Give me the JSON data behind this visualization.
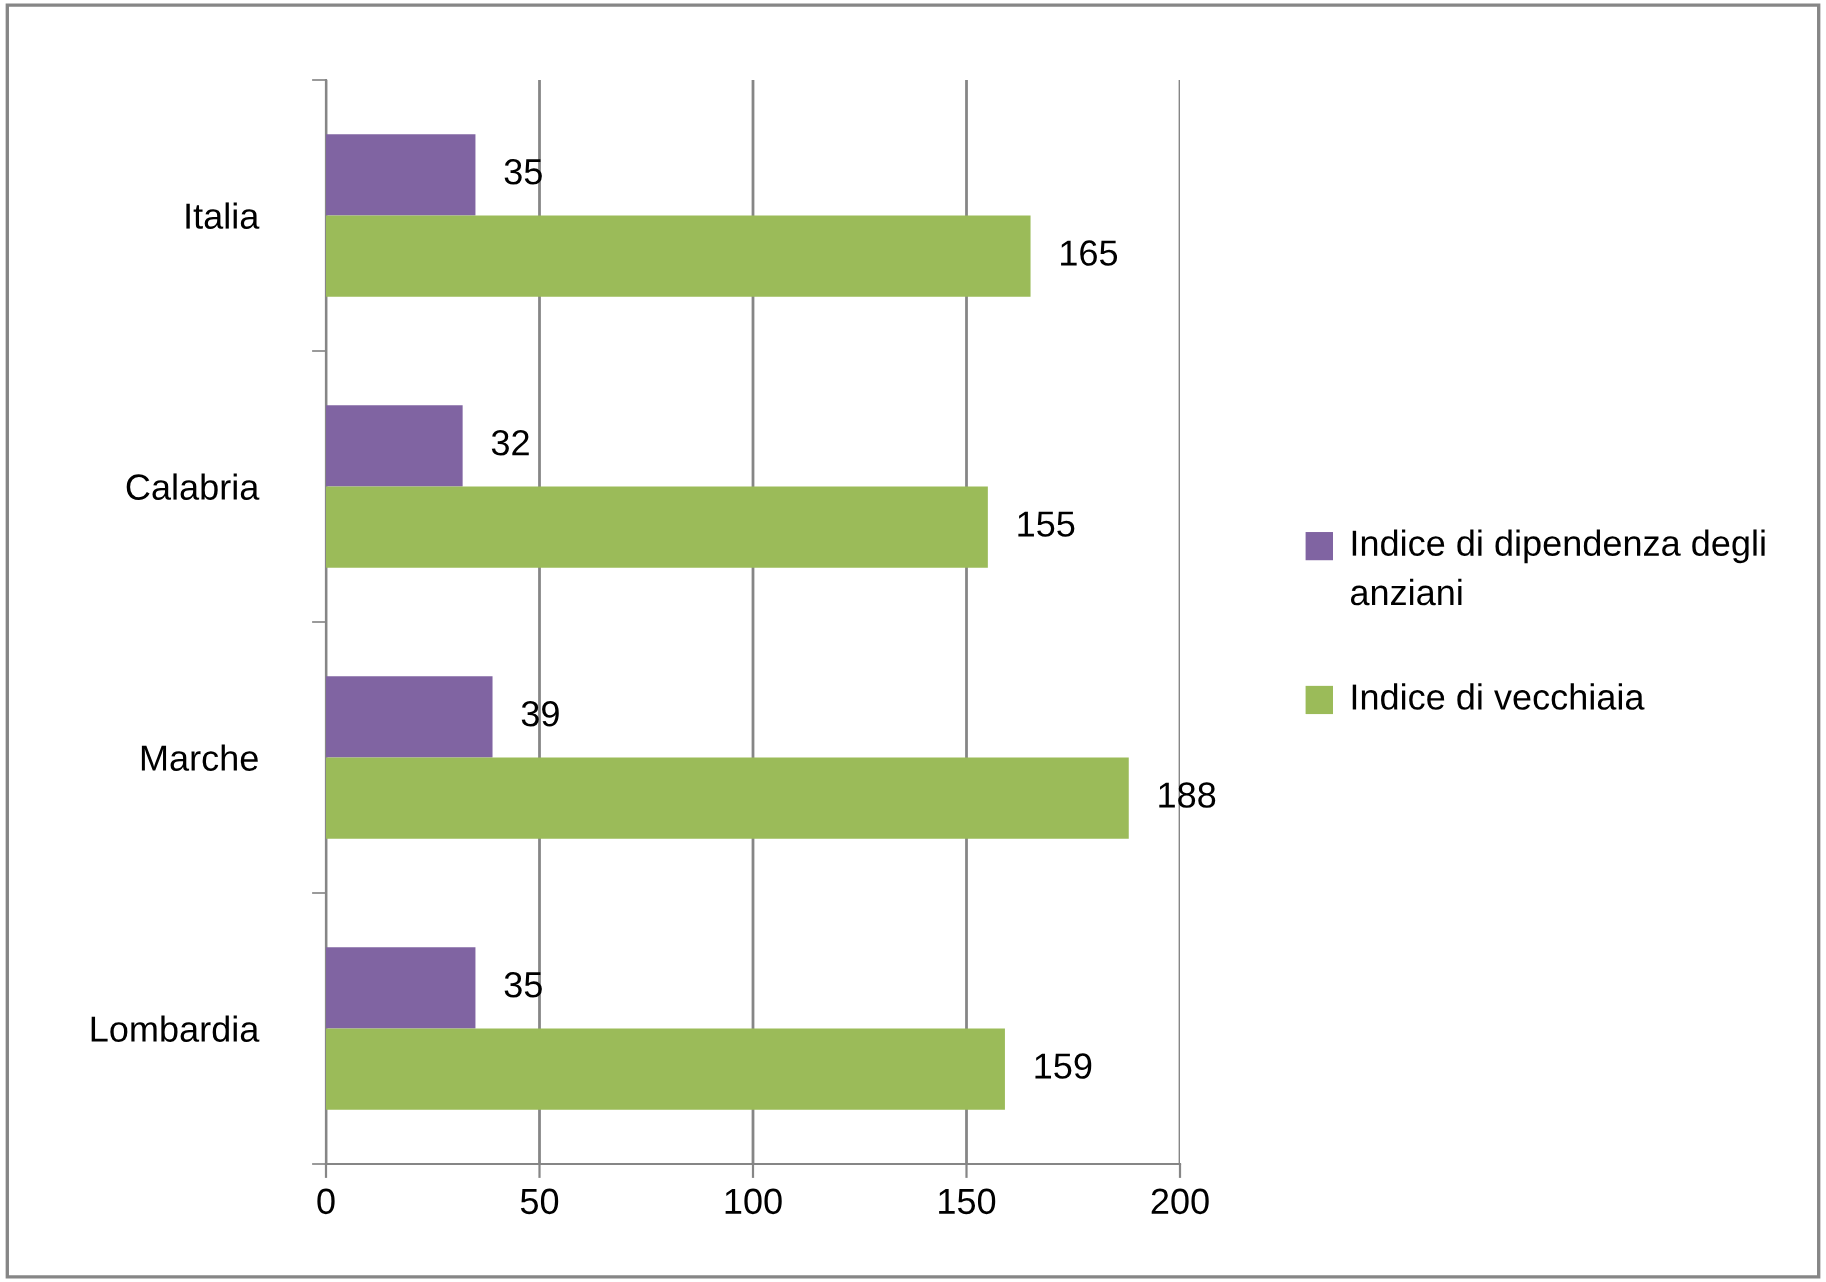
{
  "chart_data": {
    "type": "bar",
    "orientation": "horizontal",
    "categories": [
      "Italia",
      "Calabria",
      "Marche",
      "Lombardia"
    ],
    "series": [
      {
        "name": "Indice di dipendenza degli anziani",
        "color": "#8064a2",
        "values": [
          35,
          32,
          39,
          35
        ]
      },
      {
        "name": "Indice di vecchiaia",
        "color": "#9bbb59",
        "values": [
          165,
          155,
          188,
          159
        ]
      }
    ],
    "xlim": [
      0,
      200
    ],
    "xticks": [
      0,
      50,
      100,
      150,
      200
    ],
    "grid": "x",
    "legend": "right",
    "data_labels": true
  }
}
